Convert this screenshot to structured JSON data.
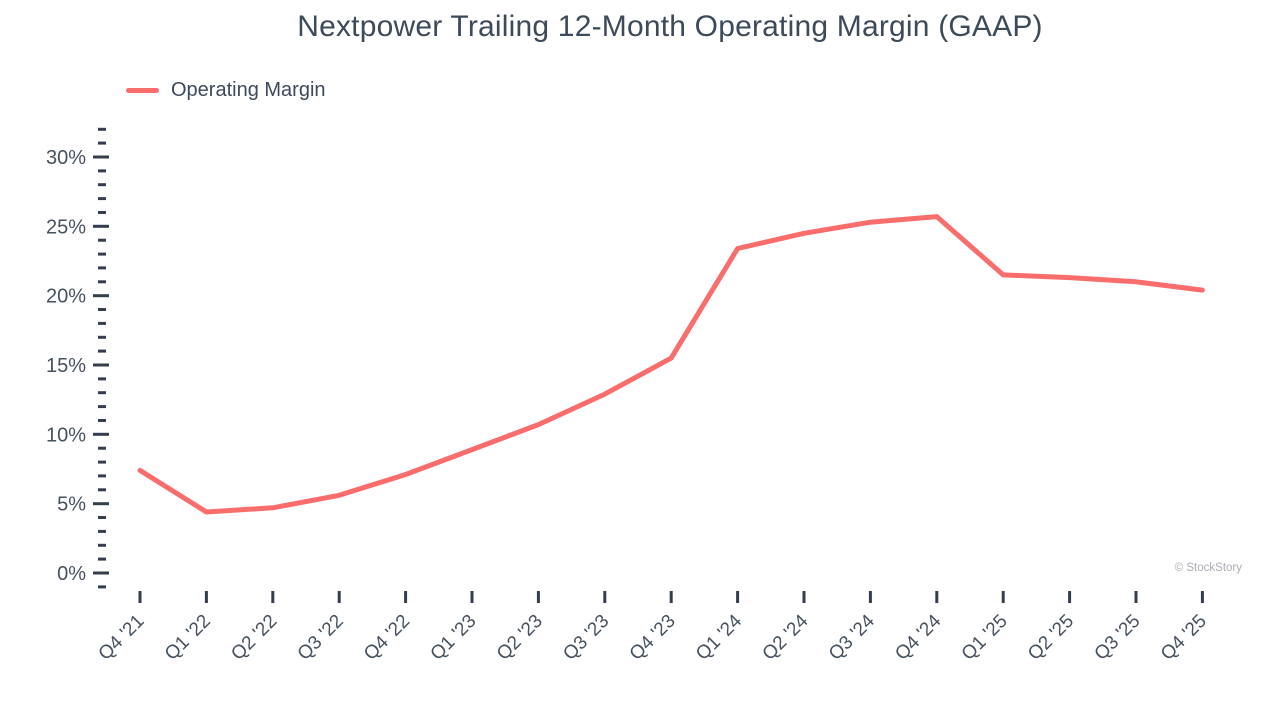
{
  "title": "Nextpower Trailing 12-Month Operating Margin (GAAP)",
  "legend": {
    "label": "Operating Margin"
  },
  "watermark": "© StockStory",
  "colors": {
    "line": "#f96d6d",
    "title_text": "#3d4a5a",
    "axis_text": "#47525f",
    "tick": "#333e4e",
    "watermark": "#a9adb4"
  },
  "chart_data": {
    "type": "line",
    "title": "Nextpower Trailing 12-Month Operating Margin (GAAP)",
    "xlabel": "",
    "ylabel": "",
    "categories": [
      "Q4 '21",
      "Q1 '22",
      "Q2 '22",
      "Q3 '22",
      "Q4 '22",
      "Q1 '23",
      "Q2 '23",
      "Q3 '23",
      "Q4 '23",
      "Q1 '24",
      "Q2 '24",
      "Q3 '24",
      "Q4 '24",
      "Q1 '25",
      "Q2 '25",
      "Q3 '25",
      "Q4 '25"
    ],
    "series": [
      {
        "name": "Operating Margin",
        "unit": "%",
        "values": [
          7.4,
          4.4,
          4.7,
          5.6,
          7.1,
          8.9,
          10.7,
          12.9,
          15.5,
          23.4,
          24.5,
          25.3,
          25.7,
          21.5,
          21.3,
          21.0,
          20.4
        ]
      }
    ],
    "y_axis": {
      "min": -1,
      "max": 32,
      "major_ticks": [
        0,
        5,
        10,
        15,
        20,
        25,
        30
      ],
      "minor_tick_step": 1,
      "tick_label_suffix": "%"
    },
    "x_tick_rotation_deg": 45,
    "legend_position": "top-left",
    "grid": false
  }
}
